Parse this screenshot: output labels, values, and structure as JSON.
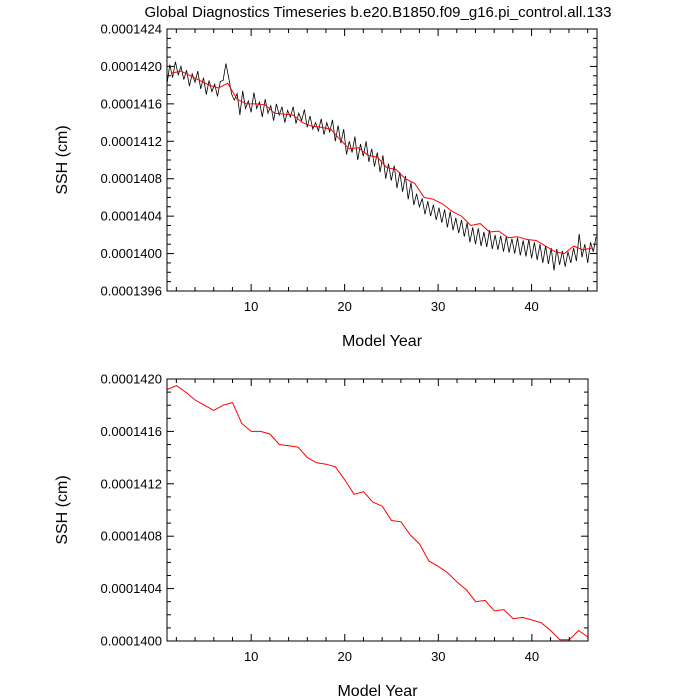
{
  "figure": {
    "title": "Global Diagnostics Timeseries b.e20.B1850.f09_g16.pi_control.all.133"
  },
  "colors": {
    "monthly_line": "#000000",
    "annual_line": "#ff0000",
    "axis": "#000000",
    "background": "#ffffff"
  },
  "chart_data": [
    {
      "type": "line",
      "title": "Global Diagnostics Timeseries b.e20.B1850.f09_g16.pi_control.all.133",
      "xlabel": "Model Year",
      "ylabel": "SSH (cm)",
      "xlim": [
        1,
        47
      ],
      "ylim": [
        0.0001396,
        0.0001424
      ],
      "xticks": [
        10,
        20,
        30,
        40
      ],
      "xtick_labels": [
        "10",
        "20",
        "30",
        "40"
      ],
      "yticks": [
        0.0001396,
        0.00014,
        0.0001404,
        0.0001408,
        0.0001412,
        0.0001416,
        0.000142,
        0.0001424
      ],
      "ytick_labels": [
        "0.0001396",
        "0.0001400",
        "0.0001404",
        "0.0001408",
        "0.0001412",
        "0.0001416",
        "0.0001420",
        "0.0001424"
      ],
      "grid": false,
      "series": [
        {
          "name": "",
          "color": "#000000",
          "style": "monthly",
          "x": [
            1.0,
            1.3,
            1.6,
            1.9,
            2.2,
            2.5,
            2.8,
            3.1,
            3.4,
            3.7,
            4.0,
            4.3,
            4.6,
            4.9,
            5.2,
            5.5,
            5.8,
            6.1,
            6.4,
            6.7,
            7.0,
            7.3,
            7.6,
            7.9,
            8.2,
            8.5,
            8.8,
            9.1,
            9.4,
            9.7,
            10.0,
            10.3,
            10.6,
            10.9,
            11.2,
            11.5,
            11.8,
            12.1,
            12.4,
            12.7,
            13.0,
            13.3,
            13.6,
            13.9,
            14.2,
            14.5,
            14.8,
            15.1,
            15.4,
            15.7,
            16.0,
            16.3,
            16.6,
            16.9,
            17.2,
            17.5,
            17.8,
            18.1,
            18.4,
            18.7,
            19.0,
            19.3,
            19.6,
            19.9,
            20.2,
            20.5,
            20.8,
            21.1,
            21.4,
            21.7,
            22.0,
            22.3,
            22.6,
            22.9,
            23.2,
            23.5,
            23.8,
            24.1,
            24.4,
            24.7,
            25.0,
            25.3,
            25.6,
            25.9,
            26.2,
            26.5,
            26.8,
            27.1,
            27.4,
            27.7,
            28.0,
            28.3,
            28.6,
            28.9,
            29.2,
            29.5,
            29.8,
            30.1,
            30.4,
            30.7,
            31.0,
            31.3,
            31.6,
            31.9,
            32.2,
            32.5,
            32.8,
            33.1,
            33.4,
            33.7,
            34.0,
            34.3,
            34.6,
            34.9,
            35.2,
            35.5,
            35.8,
            36.1,
            36.4,
            36.7,
            37.0,
            37.3,
            37.6,
            37.9,
            38.2,
            38.5,
            38.8,
            39.1,
            39.4,
            39.7,
            40.0,
            40.3,
            40.6,
            40.9,
            41.2,
            41.5,
            41.8,
            42.1,
            42.4,
            42.7,
            43.0,
            43.3,
            43.6,
            43.9,
            44.2,
            44.5,
            44.8,
            45.1,
            45.4,
            45.7,
            46.0,
            46.3,
            46.6,
            46.9
          ],
          "values": [
            0.00014181,
            0.00014202,
            0.00014188,
            0.00014205,
            0.00014191,
            0.000142,
            0.00014186,
            0.00014196,
            0.00014179,
            0.00014192,
            0.00014183,
            0.00014195,
            0.00014176,
            0.00014188,
            0.0001417,
            0.00014185,
            0.00014173,
            0.00014181,
            0.00014168,
            0.00014184,
            0.00014185,
            0.00014203,
            0.00014188,
            0.00014171,
            0.00014164,
            0.00014171,
            0.00014148,
            0.00014174,
            0.00014155,
            0.00014163,
            0.00014151,
            0.00014172,
            0.00014155,
            0.00014162,
            0.00014146,
            0.00014165,
            0.0001415,
            0.00014158,
            0.00014142,
            0.0001416,
            0.00014148,
            0.00014157,
            0.0001414,
            0.00014153,
            0.00014146,
            0.00014157,
            0.00014139,
            0.0001415,
            0.00014142,
            0.00014154,
            0.00014135,
            0.00014147,
            0.00014133,
            0.0001414,
            0.00014131,
            0.00014144,
            0.00014127,
            0.0001414,
            0.0001413,
            0.00014143,
            0.0001412,
            0.00014137,
            0.00014118,
            0.00014133,
            0.00014106,
            0.0001412,
            0.00014108,
            0.00014125,
            0.000141,
            0.00014117,
            0.00014104,
            0.0001412,
            0.00014098,
            0.00014112,
            0.00014093,
            0.00014108,
            0.00014087,
            0.00014105,
            0.0001408,
            0.00014096,
            0.00014078,
            0.00014094,
            0.0001407,
            0.00014087,
            0.00014066,
            0.00014083,
            0.00014058,
            0.00014076,
            0.00014052,
            0.00014064,
            0.0001405,
            0.00014059,
            0.00014042,
            0.00014056,
            0.0001404,
            0.00014052,
            0.00014036,
            0.00014049,
            0.00014033,
            0.00014047,
            0.00014028,
            0.00014045,
            0.00014025,
            0.00014038,
            0.00014022,
            0.00014036,
            0.00014018,
            0.00014033,
            0.00014012,
            0.00014028,
            0.0001401,
            0.00014027,
            0.00014008,
            0.00014023,
            0.00014007,
            0.00014025,
            0.00014005,
            0.0001402,
            0.00014004,
            0.00014019,
            0.00014002,
            0.00014018,
            0.00014001,
            0.00014016,
            0.00014,
            0.00014017,
            0.00013998,
            0.00014014,
            0.00013997,
            0.00014015,
            0.00013995,
            0.00014012,
            0.00013993,
            0.0001401,
            0.0001399,
            0.00014008,
            0.00013989,
            0.00014006,
            0.00013982,
            0.00014005,
            0.00013988,
            0.00014003,
            0.00013986,
            0.00014002,
            0.0001399,
            0.00014006,
            0.00013992,
            0.00014021,
            0.00013996,
            0.0001401,
            0.0001399,
            0.00014012,
            0.00014002,
            0.00014018
          ]
        },
        {
          "name": "",
          "color": "#ff0000",
          "style": "annual",
          "x": [
            1.5,
            2.5,
            3.5,
            4.5,
            5.5,
            6.5,
            7.5,
            8.5,
            9.5,
            10.5,
            11.5,
            12.5,
            13.5,
            14.5,
            15.5,
            16.5,
            17.5,
            18.5,
            19.5,
            20.5,
            21.5,
            22.5,
            23.5,
            24.5,
            25.5,
            26.5,
            27.5,
            28.5,
            29.5,
            30.5,
            31.5,
            32.5,
            33.5,
            34.5,
            35.5,
            36.5,
            37.5,
            38.5,
            39.5,
            40.5,
            41.5,
            42.5,
            43.5,
            44.5,
            45.5,
            46.5
          ],
          "values": [
            0.00014193,
            0.00014195,
            0.0001419,
            0.00014185,
            0.0001418,
            0.00014177,
            0.00014182,
            0.00014165,
            0.0001416,
            0.0001416,
            0.00014159,
            0.0001415,
            0.00014149,
            0.00014148,
            0.0001414,
            0.00014136,
            0.00014135,
            0.00014133,
            0.00014122,
            0.00014112,
            0.00014113,
            0.00014105,
            0.00014103,
            0.00014092,
            0.0001409,
            0.0001408,
            0.00014075,
            0.0001406,
            0.00014058,
            0.00014053,
            0.00014045,
            0.0001404,
            0.0001403,
            0.00014032,
            0.00014023,
            0.00014024,
            0.00014017,
            0.00014018,
            0.00014015,
            0.00014014,
            0.00014008,
            0.00014002,
            0.00014,
            0.00014008,
            0.00014004,
            0.00014006
          ]
        }
      ]
    },
    {
      "type": "line",
      "title": "",
      "xlabel": "Model Year",
      "ylabel": "SSH (cm)",
      "xlim": [
        1,
        46
      ],
      "ylim": [
        0.00014,
        0.000142
      ],
      "xticks": [
        10,
        20,
        30,
        40
      ],
      "xtick_labels": [
        "10",
        "20",
        "30",
        "40"
      ],
      "yticks": [
        0.00014,
        0.0001404,
        0.0001408,
        0.0001412,
        0.0001416,
        0.000142
      ],
      "ytick_labels": [
        "0.0001400",
        "0.0001404",
        "0.0001408",
        "0.0001412",
        "0.0001416",
        "0.0001420"
      ],
      "grid": false,
      "series": [
        {
          "name": "",
          "color": "#ff0000",
          "style": "annual",
          "x": [
            1,
            2,
            3,
            4,
            5,
            6,
            7,
            8,
            9,
            10,
            11,
            12,
            13,
            14,
            15,
            16,
            17,
            18,
            19,
            20,
            21,
            22,
            23,
            24,
            25,
            26,
            27,
            28,
            29,
            30,
            31,
            32,
            33,
            34,
            35,
            36,
            37,
            38,
            39,
            40,
            41,
            42,
            43,
            44,
            45,
            46
          ],
          "values": [
            0.00014192,
            0.00014195,
            0.0001419,
            0.00014184,
            0.0001418,
            0.00014176,
            0.0001418,
            0.00014182,
            0.00014166,
            0.0001416,
            0.0001416,
            0.00014158,
            0.0001415,
            0.00014149,
            0.00014148,
            0.0001414,
            0.00014136,
            0.00014135,
            0.00014133,
            0.00014123,
            0.00014112,
            0.00014114,
            0.00014106,
            0.00014103,
            0.00014092,
            0.00014091,
            0.00014081,
            0.00014074,
            0.00014061,
            0.00014057,
            0.00014052,
            0.00014045,
            0.00014039,
            0.0001403,
            0.00014031,
            0.00014023,
            0.00014024,
            0.00014017,
            0.00014018,
            0.00014016,
            0.00014014,
            0.00014008,
            0.00014001,
            0.00014001,
            0.00014008,
            0.00014003
          ]
        }
      ]
    }
  ]
}
